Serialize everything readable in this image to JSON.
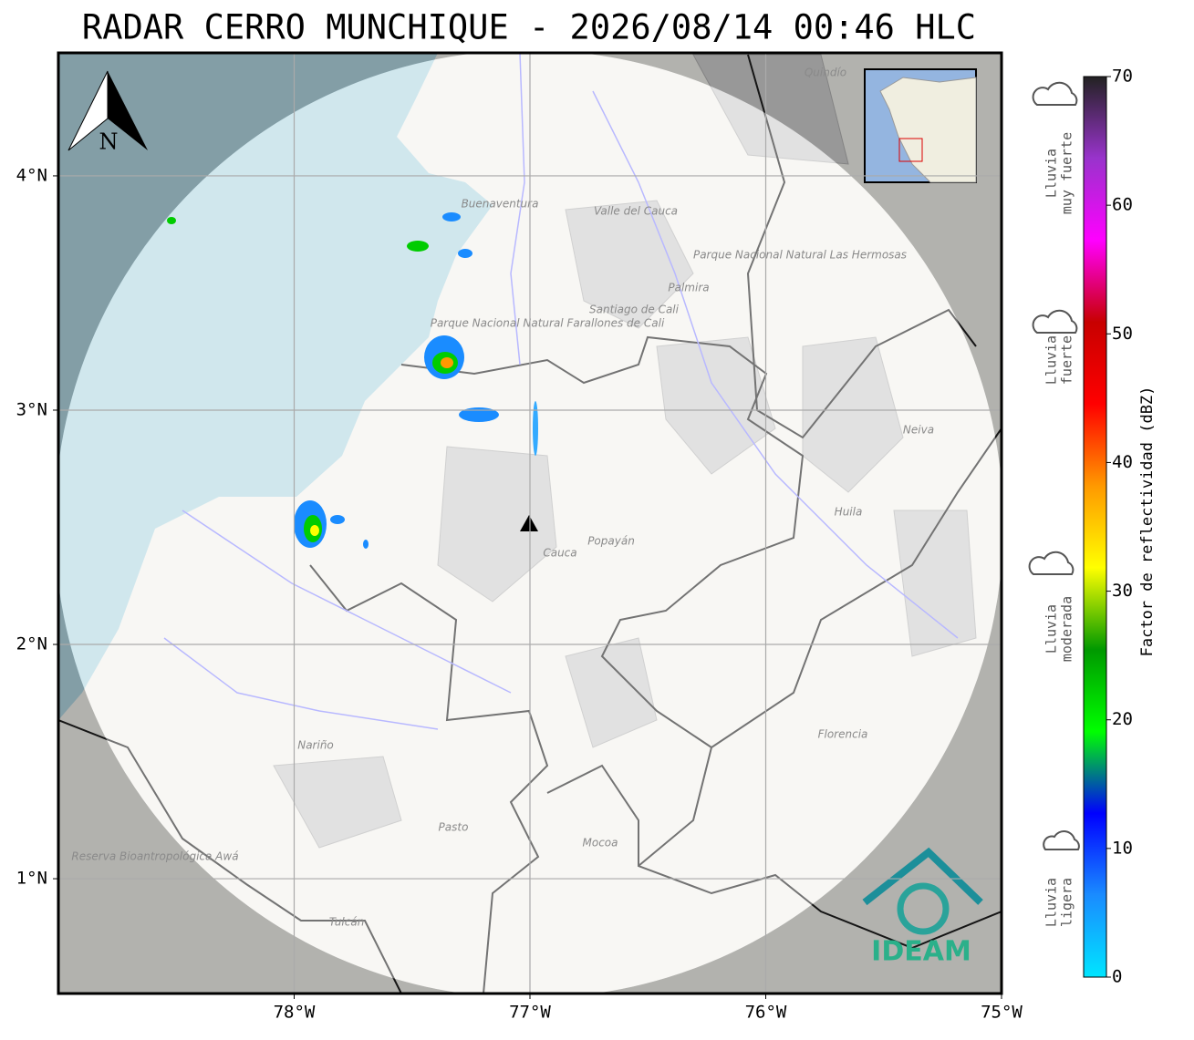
{
  "title": "RADAR CERRO MUNCHIQUE - 2026/08/14 00:46 HLC",
  "map": {
    "xlim": [
      -79,
      -75
    ],
    "ylim": [
      0.51,
      4.525
    ],
    "xticks": [
      {
        "value": -78,
        "label": "78°W"
      },
      {
        "value": -77,
        "label": "77°W"
      },
      {
        "value": -76,
        "label": "76°W"
      },
      {
        "value": -75,
        "label": "75°W"
      }
    ],
    "yticks": [
      {
        "value": 4,
        "label": "4°N"
      },
      {
        "value": 3,
        "label": "3°N"
      },
      {
        "value": 2,
        "label": "2°N"
      },
      {
        "value": 1,
        "label": "1°N"
      }
    ],
    "north_label": "N",
    "logo": "IDEAM",
    "places": [
      "Buenaventura",
      "Valle del Cauca",
      "Parque Nacional Natural Farallones de Cali",
      "Santiago de Cali",
      "Palmira",
      "Parque Nacional Natural Las Hermosas",
      "Quindío",
      "Neiva",
      "Huila",
      "Cauca",
      "Popayán",
      "Nariño",
      "Pasto",
      "Mocoa",
      "Florencia",
      "Tulcán",
      "Reserva Bioantropológica Awá"
    ]
  },
  "colorbar": {
    "label": "Factor de reflectividad (dBZ)",
    "lim": [
      0,
      70
    ],
    "ticks": [
      0,
      10,
      20,
      30,
      40,
      50,
      60,
      70
    ],
    "colors": [
      "#00e5ff",
      "#1a8cff",
      "#0000ff",
      "#00ff00",
      "#009900",
      "#ffff00",
      "#ff9900",
      "#ff0000",
      "#c80000",
      "#ff00ff",
      "#9933cc",
      "#222222"
    ]
  },
  "rain_levels": [
    [
      "Lluvia",
      "muy fuerte"
    ],
    [
      "Lluvia",
      "fuerte"
    ],
    [
      "Lluvia",
      "moderada"
    ],
    [
      "Lluvia",
      "ligera"
    ]
  ]
}
